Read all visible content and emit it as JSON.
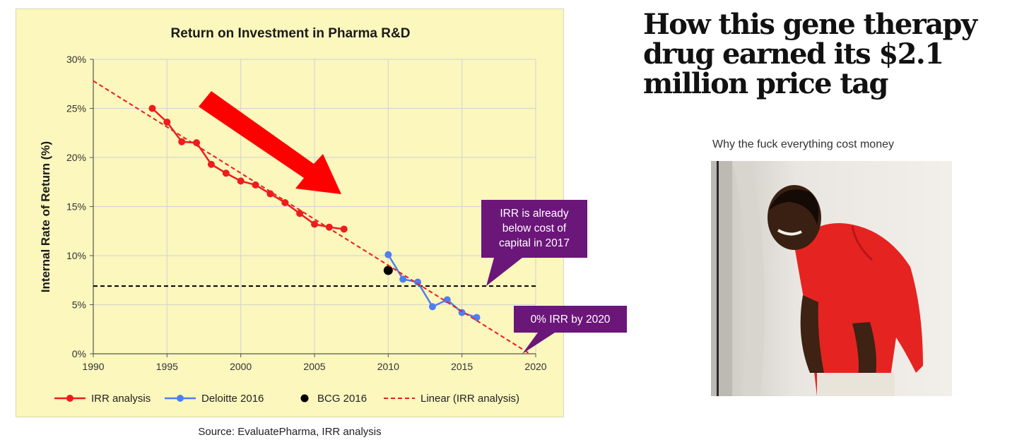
{
  "chart_data": {
    "type": "line",
    "title": "Return on Investment in Pharma R&D",
    "ylabel": "Internal Rate of Return (%)",
    "xlabel": "",
    "xlim": [
      1990,
      2020
    ],
    "ylim": [
      0,
      30
    ],
    "x_ticks": [
      "1990",
      "1995",
      "2000",
      "2005",
      "2010",
      "2015",
      "2020"
    ],
    "y_ticks": [
      "0%",
      "5%",
      "10%",
      "15%",
      "20%",
      "25%",
      "30%"
    ],
    "grid": true,
    "legend_position": "bottom",
    "series": [
      {
        "name": "IRR analysis",
        "color": "#ee1c1c",
        "x": [
          1994,
          1995,
          1996,
          1997,
          1998,
          1999,
          2000,
          2001,
          2002,
          2003,
          2004,
          2005,
          2006,
          2007
        ],
        "y": [
          25.0,
          23.6,
          21.6,
          21.5,
          19.3,
          18.4,
          17.6,
          17.2,
          16.3,
          15.4,
          14.3,
          13.2,
          12.9,
          12.7
        ]
      },
      {
        "name": "Deloitte 2016",
        "color": "#4f7ef0",
        "x": [
          2010,
          2011,
          2012,
          2013,
          2014,
          2015,
          2016
        ],
        "y": [
          10.1,
          7.6,
          7.3,
          4.8,
          5.5,
          4.2,
          3.7
        ]
      },
      {
        "name": "BCG 2016",
        "color": "#000000",
        "x": [
          2010
        ],
        "y": [
          8.5
        ]
      },
      {
        "name": "Linear (IRR analysis)",
        "color": "#ee1c1c",
        "style": "dashed",
        "x": [
          1990,
          2019.6
        ],
        "y": [
          27.8,
          0
        ]
      }
    ],
    "cost_of_capital_line": {
      "y": 6.9,
      "color": "#000000",
      "style": "dashed"
    },
    "annotations": [
      {
        "text": [
          "IRR is already",
          "below cost of",
          "capital in 2017"
        ],
        "color": "#6b1679"
      },
      {
        "text": [
          "0% IRR by 2020"
        ],
        "color": "#6b1679"
      }
    ],
    "arrow_color": "#ff0000"
  },
  "source_note": "Source: EvaluatePharma, IRR analysis",
  "headline": "How this gene therapy drug earned its $2.1 million price tag",
  "meme": {
    "caption": "Why the fuck everything cost money"
  }
}
